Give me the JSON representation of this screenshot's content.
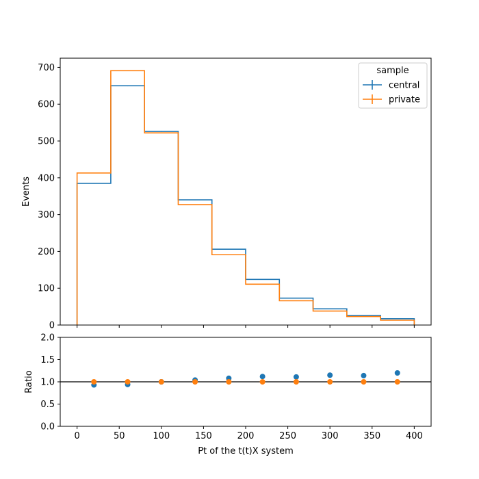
{
  "chart_data": [
    {
      "type": "step-histogram",
      "panel": "main",
      "xlabel": "",
      "ylabel": "Events",
      "xlim": [
        -20,
        420
      ],
      "ylim": [
        0,
        725
      ],
      "xticks": [
        0,
        50,
        100,
        150,
        200,
        250,
        300,
        350,
        400
      ],
      "yticks": [
        0,
        100,
        200,
        300,
        400,
        500,
        600,
        700
      ],
      "bin_edges": [
        0,
        40,
        80,
        120,
        160,
        200,
        240,
        280,
        320,
        360,
        400
      ],
      "legend": {
        "title": "sample",
        "placement": "top-right"
      },
      "series": [
        {
          "name": "central",
          "color": "#1f77b4",
          "values": [
            385,
            650,
            526,
            340,
            206,
            124,
            73,
            44,
            26,
            17
          ]
        },
        {
          "name": "private",
          "color": "#ff7f0e",
          "values": [
            413,
            691,
            522,
            327,
            191,
            111,
            66,
            38,
            23,
            13
          ]
        }
      ]
    },
    {
      "type": "scatter",
      "panel": "ratio",
      "xlabel": "Pt of the t(t)X system",
      "ylabel": "Ratio",
      "xlim": [
        -20,
        420
      ],
      "ylim": [
        0,
        2
      ],
      "xticks": [
        0,
        50,
        100,
        150,
        200,
        250,
        300,
        350,
        400
      ],
      "yticks": [
        "0.0",
        "0.5",
        "1.0",
        "1.5",
        "2.0"
      ],
      "reference_line": 1.0,
      "x": [
        20,
        60,
        100,
        140,
        180,
        220,
        260,
        300,
        340,
        380
      ],
      "series": [
        {
          "name": "central",
          "color": "#1f77b4",
          "values": [
            0.93,
            0.94,
            1.0,
            1.04,
            1.08,
            1.12,
            1.11,
            1.15,
            1.14,
            1.2
          ]
        },
        {
          "name": "private",
          "color": "#ff7f0e",
          "values": [
            1.0,
            1.0,
            1.0,
            1.0,
            1.0,
            1.0,
            1.0,
            1.0,
            1.0,
            1.0
          ]
        }
      ]
    }
  ]
}
